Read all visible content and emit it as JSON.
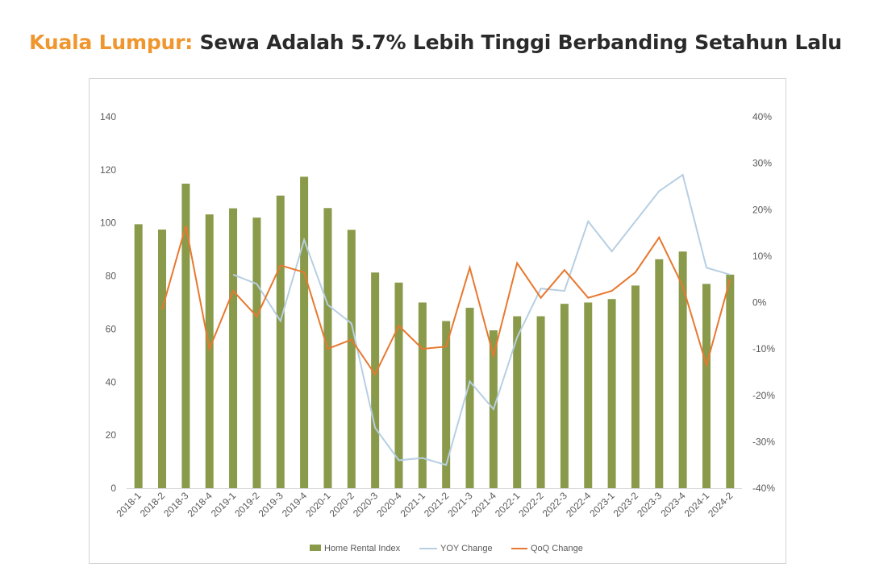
{
  "title": {
    "prefix": "Kuala Lumpur:",
    "main": " Sewa Adalah 5.7% Lebih Tinggi Berbanding Setahun Lalu"
  },
  "colors": {
    "title_accent": "#f0962e",
    "bar": "#8a9a4b",
    "yoy": "#b7cfe3",
    "qoq": "#e8782f"
  },
  "chart_data": {
    "type": "bar",
    "categories": [
      "2018-1",
      "2018-2",
      "2018-3",
      "2018-4",
      "2019-1",
      "2019-2",
      "2019-3",
      "2019-4",
      "2020-1",
      "2020-2",
      "2020-3",
      "2020-4",
      "2021-1",
      "2021-2",
      "2021-3",
      "2021-4",
      "2022-1",
      "2022-2",
      "2022-3",
      "2022-4",
      "2023-1",
      "2023-2",
      "2023-3",
      "2023-4",
      "2024-1",
      "2024-2"
    ],
    "left_axis": {
      "ylim": [
        0,
        140
      ],
      "ticks": [
        "0",
        "20",
        "40",
        "60",
        "80",
        "100",
        "120",
        "140"
      ]
    },
    "right_axis": {
      "ylim": [
        -40,
        40
      ],
      "ticks": [
        "-40%",
        "-30%",
        "-20%",
        "-10%",
        "0%",
        "10%",
        "20%",
        "30%",
        "40%"
      ]
    },
    "series": [
      {
        "name": "Home Rental Index",
        "type": "bar",
        "axis": "left",
        "values": [
          99.5,
          97.5,
          114.8,
          103.2,
          105.5,
          102,
          110.3,
          117.4,
          105.6,
          97.4,
          81.3,
          77.5,
          70,
          63,
          68,
          59.5,
          64.8,
          64.8,
          69.5,
          70,
          71.3,
          76.4,
          86.3,
          89.2,
          77,
          80.5
        ]
      },
      {
        "name": "YOY Change",
        "type": "line",
        "axis": "right",
        "values": [
          null,
          null,
          null,
          null,
          6,
          4,
          -4,
          13.5,
          -0.5,
          -4.5,
          -27,
          -34,
          -33.5,
          -35,
          -17,
          -23,
          -7.5,
          3,
          2.5,
          17.5,
          11,
          17.5,
          24,
          27.5,
          7.5,
          6
        ]
      },
      {
        "name": "QoQ Change",
        "type": "line",
        "axis": "right",
        "values": [
          null,
          -1.5,
          16.5,
          -10,
          2.5,
          -3,
          8,
          6.5,
          -10,
          -8,
          -15.5,
          -5,
          -10,
          -9.5,
          7.5,
          -11.5,
          8.5,
          1,
          7,
          1,
          2.5,
          6.5,
          14,
          3.5,
          -13.5,
          5
        ]
      }
    ]
  }
}
